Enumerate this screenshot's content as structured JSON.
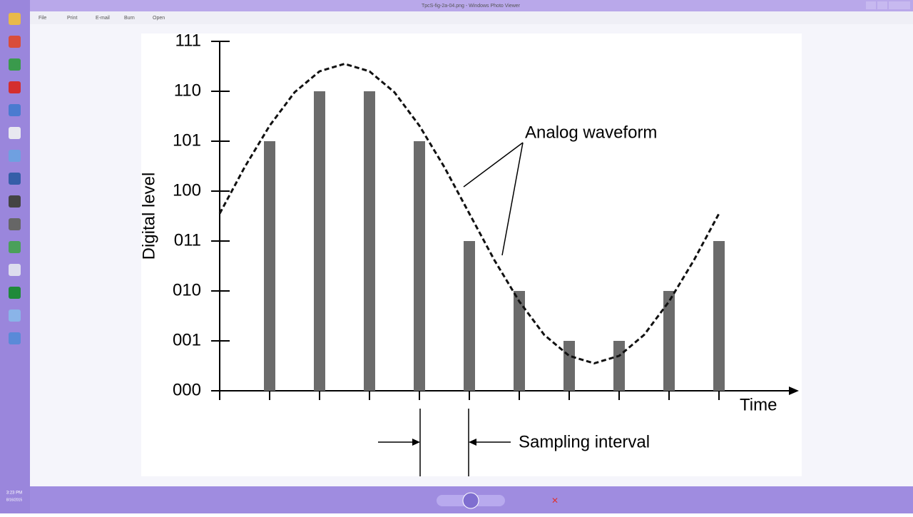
{
  "window": {
    "title": "TpcS-fig-2a-04.png - Windows Photo Viewer",
    "menu": [
      "File",
      "Print",
      "E-mail",
      "Burn",
      "Open"
    ],
    "clock": {
      "time": "3:23 PM",
      "date": "8/16/2015"
    }
  },
  "chart_data": {
    "type": "bar",
    "y_label": "Digital level",
    "x_label": "Time",
    "annotations": [
      "Analog waveform",
      "Sampling interval"
    ],
    "xlim": [
      0,
      11.6
    ],
    "xticks": [
      0,
      1,
      2,
      3,
      4,
      5,
      6,
      7,
      8,
      9,
      10
    ],
    "ylim": [
      0,
      7
    ],
    "yticks": [
      {
        "value": 0,
        "label": "000"
      },
      {
        "value": 1,
        "label": "001"
      },
      {
        "value": 2,
        "label": "010"
      },
      {
        "value": 3,
        "label": "011"
      },
      {
        "value": 4,
        "label": "100"
      },
      {
        "value": 5,
        "label": "101"
      },
      {
        "value": 6,
        "label": "110"
      },
      {
        "value": 7,
        "label": "111"
      }
    ],
    "bars": {
      "color": "#6b6b6b",
      "x": [
        1,
        2,
        3,
        4,
        5,
        6,
        7,
        8,
        9,
        10
      ],
      "values": [
        5,
        6,
        6,
        5,
        3,
        2,
        1,
        1,
        2,
        3
      ]
    },
    "waveform": {
      "color": "#111111",
      "dashed": true,
      "x": [
        0,
        0.5,
        1,
        1.5,
        2,
        2.5,
        3,
        3.5,
        4,
        4.5,
        5,
        5.5,
        6,
        6.5,
        7,
        7.5,
        8,
        8.5,
        9,
        9.5,
        10
      ],
      "values": [
        3.55,
        4.48,
        5.31,
        5.98,
        6.4,
        6.55,
        6.4,
        5.98,
        5.31,
        4.48,
        3.55,
        2.62,
        1.79,
        1.12,
        0.7,
        0.55,
        0.7,
        1.12,
        1.79,
        2.62,
        3.55
      ]
    }
  }
}
